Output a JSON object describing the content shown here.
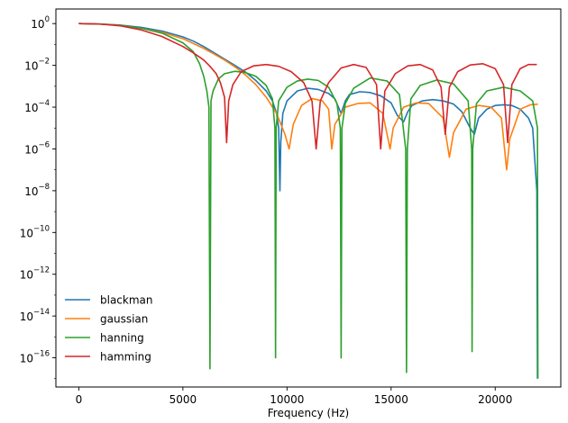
{
  "chart_data": {
    "type": "line",
    "title": "",
    "xlabel": "Frequency (Hz)",
    "ylabel": "",
    "yscale": "log",
    "xlim": [
      -1100,
      23150
    ],
    "ylim": [
      4e-18,
      5
    ],
    "xticks": [
      0,
      5000,
      10000,
      15000,
      20000
    ],
    "xtick_labels": [
      "0",
      "5000",
      "10000",
      "15000",
      "20000"
    ],
    "yticks": [
      1,
      0.01,
      0.0001,
      1e-06,
      1e-08,
      1e-10,
      1e-12,
      1e-14,
      1e-16
    ],
    "ytick_labels": [
      {
        "base": "10",
        "exp": "0"
      },
      {
        "base": "10",
        "exp": "−2"
      },
      {
        "base": "10",
        "exp": "−4"
      },
      {
        "base": "10",
        "exp": "−6"
      },
      {
        "base": "10",
        "exp": "−8"
      },
      {
        "base": "10",
        "exp": "−10"
      },
      {
        "base": "10",
        "exp": "−12"
      },
      {
        "base": "10",
        "exp": "−14"
      },
      {
        "base": "10",
        "exp": "−16"
      }
    ],
    "grid": false,
    "legend": {
      "position": "lower-left",
      "frame": false
    },
    "series": [
      {
        "name": "blackman",
        "color": "#1f77b4",
        "x": [
          0,
          1000,
          2000,
          3000,
          4000,
          5000,
          5500,
          6000,
          6500,
          7000,
          7500,
          8000,
          8500,
          9000,
          9300,
          9500,
          9600,
          9660,
          9700,
          9800,
          10000,
          10500,
          11000,
          11500,
          12000,
          12300,
          12600,
          12800,
          13000,
          13500,
          14000,
          14500,
          15000,
          15300,
          15600,
          15800,
          16000,
          16500,
          17000,
          17500,
          18000,
          18400,
          18800,
          19000,
          19200,
          19600,
          20000,
          20400,
          20800,
          21200,
          21600,
          21800,
          22000,
          22030
        ],
        "y": [
          1,
          0.96,
          0.85,
          0.66,
          0.44,
          0.23,
          0.145,
          0.08,
          0.04,
          0.02,
          0.01,
          0.0048,
          0.0019,
          0.0006,
          0.0002,
          5e-05,
          1e-05,
          1e-08,
          2e-06,
          5e-05,
          0.0002,
          0.0006,
          0.0008,
          0.0007,
          0.00045,
          0.00025,
          5e-05,
          0.0002,
          0.0004,
          0.00055,
          0.0005,
          0.00035,
          0.00016,
          4e-05,
          2e-05,
          6e-05,
          0.00012,
          0.0002,
          0.00023,
          0.0002,
          0.00014,
          6e-05,
          1e-05,
          5e-06,
          3e-05,
          8e-05,
          0.00012,
          0.00013,
          0.00012,
          8e-05,
          3e-05,
          1e-05,
          1e-08,
          1e-17
        ]
      },
      {
        "name": "gaussian",
        "color": "#ff7f0e",
        "x": [
          0,
          1000,
          2000,
          3000,
          4000,
          5000,
          6000,
          6500,
          7000,
          7500,
          8000,
          8500,
          9000,
          9500,
          9900,
          10100,
          10300,
          10700,
          11200,
          11700,
          12000,
          12150,
          12300,
          12800,
          13400,
          14000,
          14600,
          14950,
          15100,
          15600,
          16200,
          16800,
          17500,
          17800,
          18000,
          18600,
          19200,
          19800,
          20300,
          20550,
          20700,
          21200,
          21700,
          22050
        ],
        "y": [
          1,
          0.95,
          0.82,
          0.6,
          0.38,
          0.19,
          0.065,
          0.035,
          0.018,
          0.0085,
          0.0035,
          0.0012,
          0.0003,
          5e-05,
          5e-06,
          1e-06,
          1.5e-05,
          0.00012,
          0.00026,
          0.0002,
          8e-05,
          1e-06,
          1.5e-05,
          0.0001,
          0.00015,
          0.00016,
          5e-05,
          1e-06,
          1e-05,
          0.0001,
          0.00016,
          0.00015,
          3e-05,
          4e-07,
          6e-06,
          8e-05,
          0.00012,
          0.0001,
          3e-05,
          1e-07,
          3e-06,
          8e-05,
          0.00013,
          0.00014
        ]
      },
      {
        "name": "hanning",
        "color": "#2ca02c",
        "x": [
          0,
          1000,
          2000,
          3000,
          4000,
          5000,
          5500,
          5800,
          6000,
          6150,
          6250,
          6300,
          6350,
          6450,
          6700,
          7000,
          7500,
          8000,
          8500,
          9000,
          9300,
          9420,
          9450,
          9480,
          9600,
          10000,
          10500,
          11000,
          11500,
          12000,
          12400,
          12560,
          12600,
          12640,
          12800,
          13200,
          14000,
          14800,
          15400,
          15700,
          15740,
          15780,
          15950,
          16400,
          17200,
          18000,
          18700,
          18870,
          18890,
          18920,
          19100,
          19600,
          20400,
          21200,
          21800,
          22030,
          22050
        ],
        "y": [
          1,
          0.95,
          0.82,
          0.6,
          0.35,
          0.12,
          0.045,
          0.012,
          0.003,
          0.0006,
          0.0001,
          3e-17,
          0.0002,
          0.0006,
          0.0022,
          0.004,
          0.0052,
          0.0045,
          0.003,
          0.0011,
          0.00025,
          1e-05,
          1e-16,
          1e-05,
          0.0002,
          0.0009,
          0.0018,
          0.0022,
          0.0019,
          0.0009,
          0.00015,
          1e-05,
          1e-16,
          1e-05,
          0.00015,
          0.0008,
          0.0025,
          0.0018,
          0.0004,
          1e-06,
          2e-17,
          1e-06,
          0.00025,
          0.0011,
          0.002,
          0.0013,
          0.0002,
          1e-06,
          2e-16,
          1e-06,
          0.00015,
          0.0006,
          0.0009,
          0.0006,
          0.0002,
          1e-05,
          1e-17
        ]
      },
      {
        "name": "hamming",
        "color": "#d62728",
        "x": [
          0,
          1000,
          2000,
          3000,
          4000,
          5000,
          5500,
          6000,
          6300,
          6600,
          6800,
          7000,
          7100,
          7200,
          7400,
          7800,
          8400,
          9000,
          9600,
          10200,
          10800,
          11200,
          11400,
          11600,
          12000,
          12600,
          13200,
          13800,
          14300,
          14500,
          14700,
          15200,
          15800,
          16400,
          17000,
          17400,
          17600,
          17800,
          18200,
          18800,
          19400,
          20000,
          20400,
          20600,
          20800,
          21200,
          21600,
          22000
        ],
        "y": [
          1,
          0.95,
          0.78,
          0.5,
          0.24,
          0.08,
          0.04,
          0.018,
          0.009,
          0.004,
          0.0015,
          0.0003,
          2e-06,
          0.0002,
          0.0012,
          0.005,
          0.0095,
          0.011,
          0.009,
          0.005,
          0.0015,
          0.0002,
          1e-06,
          0.0002,
          0.0015,
          0.0075,
          0.011,
          0.008,
          0.0012,
          1e-06,
          0.0006,
          0.004,
          0.0095,
          0.011,
          0.006,
          0.0009,
          5e-06,
          0.0009,
          0.005,
          0.0105,
          0.012,
          0.007,
          0.0012,
          2e-06,
          0.0012,
          0.007,
          0.011,
          0.011
        ]
      }
    ]
  }
}
